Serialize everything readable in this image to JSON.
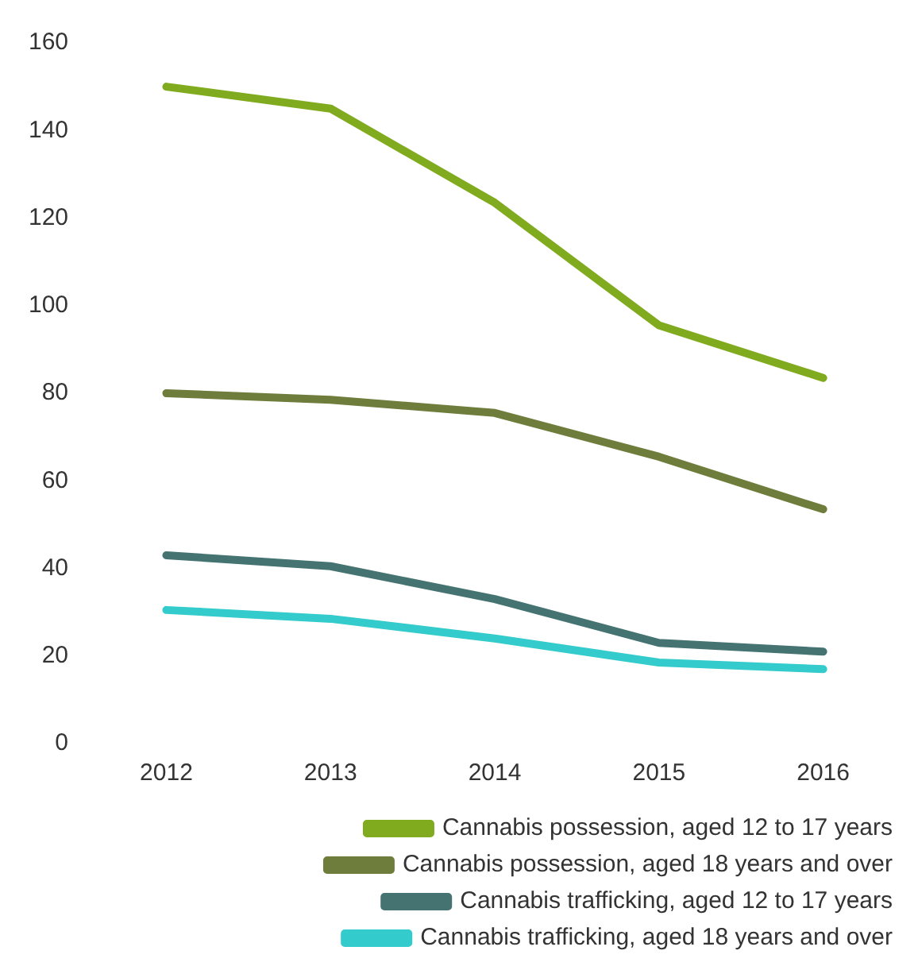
{
  "chart_data": {
    "type": "line",
    "categories": [
      "2012",
      "2013",
      "2014",
      "2015",
      "2016"
    ],
    "series": [
      {
        "name": "Cannabis possession, aged 12 to 17 years",
        "color": "#80ab1e",
        "values": [
          150,
          145,
          123.5,
          95.5,
          83.5
        ]
      },
      {
        "name": "Cannabis possession, aged 18 years and over",
        "color": "#6e7d3c",
        "values": [
          80,
          78.5,
          75.5,
          65.5,
          53.5
        ]
      },
      {
        "name": "Cannabis trafficking, aged 12 to 17 years",
        "color": "#447372",
        "values": [
          43,
          40.5,
          33,
          23,
          21
        ]
      },
      {
        "name": "Cannabis trafficking, aged 18 years and over",
        "color": "#33cbcb",
        "values": [
          30.5,
          28.5,
          24,
          18.5,
          17
        ]
      }
    ],
    "ylim": [
      0,
      160
    ],
    "yticks": [
      0,
      20,
      40,
      60,
      80,
      100,
      120,
      140,
      160
    ],
    "grid": false,
    "legend": "bottom",
    "marker": "none",
    "line_style": "solid"
  }
}
